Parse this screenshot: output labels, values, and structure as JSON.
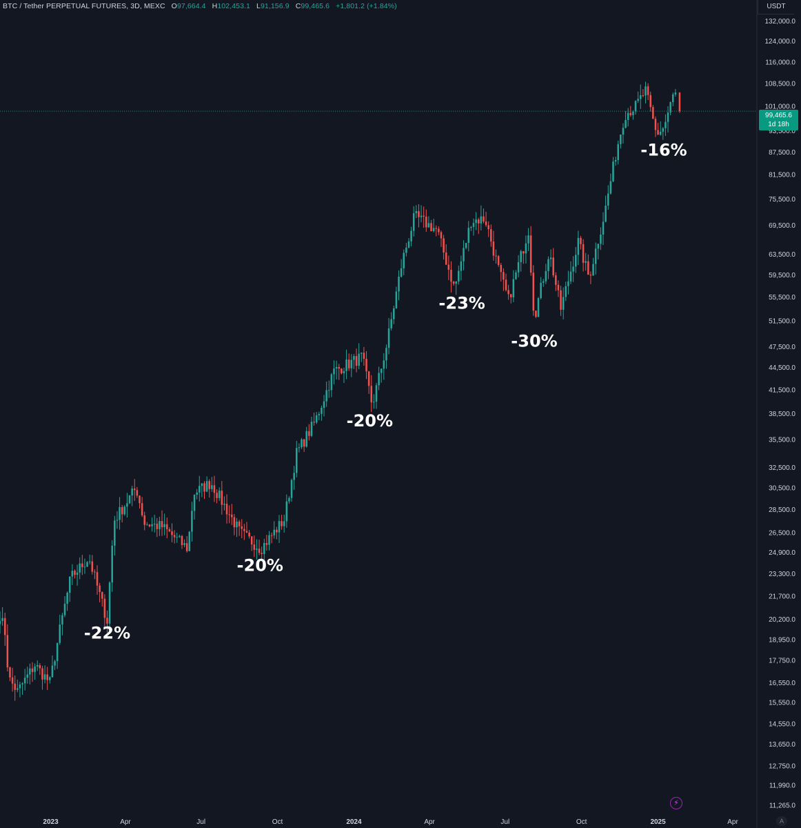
{
  "header": {
    "symbol": "BTC / Tether PERPETUAL FUTURES, 3D, MEXC",
    "open_label": "O",
    "open_value": "97,664.4",
    "high_label": "H",
    "high_value": "102,453.1",
    "low_label": "L",
    "low_value": "91,156.9",
    "close_label": "C",
    "close_value": "99,465.6",
    "change": "+1,801.2 (+1.84%)"
  },
  "currency": "USDT",
  "last_price": {
    "value": "99,465.6",
    "countdown": "1d 18h"
  },
  "icons": {
    "flash": "lightning-icon",
    "auto": "auto-scale-icon"
  },
  "auto_label": "A",
  "colors": {
    "background": "#131722",
    "up": "#26a69a",
    "down": "#ef5350",
    "badge": "#089981"
  },
  "chart_data": {
    "type": "candlestick",
    "title": "",
    "scale": "log",
    "ylim": [
      11000,
      135000
    ],
    "x_start": "2022-11-01",
    "x_end": "2025-04-30",
    "y_ticks": [
      "132,000.0",
      "124,000.0",
      "116,000.0",
      "108,500.0",
      "101,000.0",
      "93,500.0",
      "87,500.0",
      "81,500.0",
      "75,500.0",
      "69,500.0",
      "63,500.0",
      "59,500.0",
      "55,500.0",
      "51,500.0",
      "47,500.0",
      "44,500.0",
      "41,500.0",
      "38,500.0",
      "35,500.0",
      "32,500.0",
      "30,500.0",
      "28,500.0",
      "26,500.0",
      "24,900.0",
      "23,300.0",
      "21,700.0",
      "20,200.0",
      "18,950.0",
      "17,750.0",
      "16,550.0",
      "15,550.0",
      "14,550.0",
      "13,650.0",
      "12,750.0",
      "11,990.0",
      "11,265.0"
    ],
    "x_ticks": [
      {
        "label": "2023",
        "date": "2023-01-01",
        "bold": true
      },
      {
        "label": "Apr",
        "date": "2023-04-01",
        "bold": false
      },
      {
        "label": "Jul",
        "date": "2023-07-01",
        "bold": false
      },
      {
        "label": "Oct",
        "date": "2023-10-01",
        "bold": false
      },
      {
        "label": "2024",
        "date": "2024-01-01",
        "bold": true
      },
      {
        "label": "Apr",
        "date": "2024-04-01",
        "bold": false
      },
      {
        "label": "Jul",
        "date": "2024-07-01",
        "bold": false
      },
      {
        "label": "Oct",
        "date": "2024-10-01",
        "bold": false
      },
      {
        "label": "2025",
        "date": "2025-01-01",
        "bold": true
      },
      {
        "label": "Apr",
        "date": "2025-04-01",
        "bold": false
      }
    ],
    "price_path": [
      [
        "2022-11-01",
        20500
      ],
      [
        "2022-11-08",
        19200
      ],
      [
        "2022-11-11",
        16800
      ],
      [
        "2022-11-22",
        16100
      ],
      [
        "2022-12-13",
        17500
      ],
      [
        "2022-12-31",
        16550
      ],
      [
        "2023-01-13",
        19800
      ],
      [
        "2023-01-25",
        23000
      ],
      [
        "2023-02-16",
        24500
      ],
      [
        "2023-03-10",
        20100
      ],
      [
        "2023-03-18",
        27500
      ],
      [
        "2023-04-14",
        30500
      ],
      [
        "2023-04-24",
        27300
      ],
      [
        "2023-05-15",
        27000
      ],
      [
        "2023-06-15",
        25200
      ],
      [
        "2023-06-22",
        30000
      ],
      [
        "2023-07-13",
        31000
      ],
      [
        "2023-08-17",
        26500
      ],
      [
        "2023-09-11",
        25200
      ],
      [
        "2023-10-09",
        27600
      ],
      [
        "2023-10-24",
        34000
      ],
      [
        "2023-11-15",
        37500
      ],
      [
        "2023-12-08",
        44000
      ],
      [
        "2024-01-11",
        46000
      ],
      [
        "2024-01-23",
        39500
      ],
      [
        "2024-02-09",
        47500
      ],
      [
        "2024-02-28",
        62000
      ],
      [
        "2024-03-14",
        71500
      ],
      [
        "2024-04-10",
        68500
      ],
      [
        "2024-05-01",
        57000
      ],
      [
        "2024-05-21",
        70500
      ],
      [
        "2024-06-07",
        71000
      ],
      [
        "2024-06-24",
        60000
      ],
      [
        "2024-07-05",
        55000
      ],
      [
        "2024-07-29",
        68500
      ],
      [
        "2024-08-05",
        52000
      ],
      [
        "2024-08-23",
        64000
      ],
      [
        "2024-09-06",
        53500
      ],
      [
        "2024-09-27",
        66000
      ],
      [
        "2024-10-10",
        59000
      ],
      [
        "2024-10-29",
        72500
      ],
      [
        "2024-11-12",
        88000
      ],
      [
        "2024-11-22",
        98500
      ],
      [
        "2024-12-05",
        101000
      ],
      [
        "2024-12-17",
        106000
      ],
      [
        "2024-12-30",
        92500
      ],
      [
        "2025-01-08",
        94500
      ],
      [
        "2025-01-21",
        106000
      ],
      [
        "2025-01-27",
        99465
      ]
    ],
    "annotations": [
      {
        "text": "-22%",
        "date": "2023-03-10",
        "price": 19000
      },
      {
        "text": "-20%",
        "date": "2023-09-10",
        "price": 23500
      },
      {
        "text": "-20%",
        "date": "2024-01-20",
        "price": 37000
      },
      {
        "text": "-23%",
        "date": "2024-05-10",
        "price": 53500
      },
      {
        "text": "-30%",
        "date": "2024-08-05",
        "price": 47500
      },
      {
        "text": "-16%",
        "date": "2025-01-08",
        "price": 86500
      }
    ]
  }
}
